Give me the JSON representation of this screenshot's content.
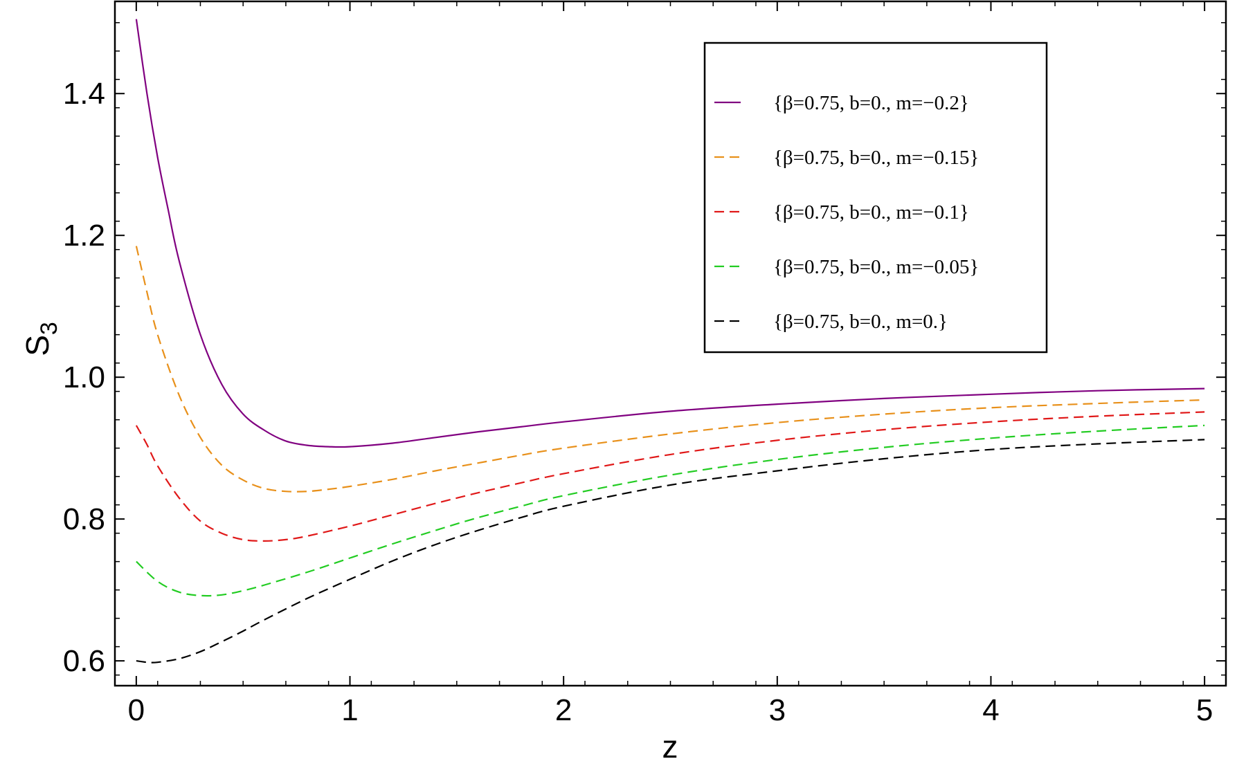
{
  "chart_data": {
    "type": "line",
    "title": "",
    "xlabel": "z",
    "ylabel": "S",
    "ylabel_sub": "3",
    "xlim": [
      -0.1,
      5.1
    ],
    "ylim": [
      0.565,
      1.53
    ],
    "xticks": [
      0,
      1,
      2,
      3,
      4,
      5
    ],
    "xtick_labels": [
      "0",
      "1",
      "2",
      "3",
      "4",
      "5"
    ],
    "yticks": [
      0.6,
      0.8,
      1.0,
      1.2,
      1.4
    ],
    "ytick_labels": [
      "0.6",
      "0.8",
      "1.0",
      "1.2",
      "1.4"
    ],
    "grid": false,
    "legend_position": "top-right",
    "series": [
      {
        "name": "{β=0.75, b=0., m=−0.2}",
        "color": "#800080",
        "dash": "solid",
        "points": [
          [
            0,
            1.505
          ],
          [
            0.05,
            1.4
          ],
          [
            0.1,
            1.31
          ],
          [
            0.15,
            1.235
          ],
          [
            0.2,
            1.165
          ],
          [
            0.3,
            1.06
          ],
          [
            0.4,
            0.99
          ],
          [
            0.5,
            0.948
          ],
          [
            0.6,
            0.925
          ],
          [
            0.7,
            0.91
          ],
          [
            0.8,
            0.904
          ],
          [
            0.9,
            0.902
          ],
          [
            1.0,
            0.902
          ],
          [
            1.2,
            0.907
          ],
          [
            1.4,
            0.915
          ],
          [
            1.6,
            0.923
          ],
          [
            1.8,
            0.93
          ],
          [
            2.0,
            0.937
          ],
          [
            2.5,
            0.952
          ],
          [
            3.0,
            0.962
          ],
          [
            3.5,
            0.97
          ],
          [
            4.0,
            0.976
          ],
          [
            4.5,
            0.981
          ],
          [
            5.0,
            0.984
          ]
        ]
      },
      {
        "name": "{β=0.75, b=0., m=−0.15}",
        "color": "#e8901a",
        "dash": "dashed",
        "points": [
          [
            0,
            1.185
          ],
          [
            0.05,
            1.12
          ],
          [
            0.1,
            1.06
          ],
          [
            0.2,
            0.975
          ],
          [
            0.3,
            0.915
          ],
          [
            0.4,
            0.876
          ],
          [
            0.5,
            0.855
          ],
          [
            0.6,
            0.843
          ],
          [
            0.7,
            0.839
          ],
          [
            0.8,
            0.839
          ],
          [
            0.9,
            0.842
          ],
          [
            1.0,
            0.846
          ],
          [
            1.2,
            0.856
          ],
          [
            1.4,
            0.868
          ],
          [
            1.6,
            0.879
          ],
          [
            1.8,
            0.89
          ],
          [
            2.0,
            0.9
          ],
          [
            2.5,
            0.92
          ],
          [
            3.0,
            0.936
          ],
          [
            3.5,
            0.948
          ],
          [
            4.0,
            0.957
          ],
          [
            4.5,
            0.963
          ],
          [
            5.0,
            0.968
          ]
        ]
      },
      {
        "name": "{β=0.75, b=0., m=−0.1}",
        "color": "#e01818",
        "dash": "dashed",
        "points": [
          [
            0,
            0.932
          ],
          [
            0.05,
            0.905
          ],
          [
            0.1,
            0.875
          ],
          [
            0.2,
            0.83
          ],
          [
            0.3,
            0.797
          ],
          [
            0.4,
            0.78
          ],
          [
            0.5,
            0.771
          ],
          [
            0.6,
            0.769
          ],
          [
            0.7,
            0.771
          ],
          [
            0.8,
            0.776
          ],
          [
            1.0,
            0.79
          ],
          [
            1.2,
            0.806
          ],
          [
            1.4,
            0.822
          ],
          [
            1.6,
            0.837
          ],
          [
            1.8,
            0.851
          ],
          [
            2.0,
            0.864
          ],
          [
            2.5,
            0.891
          ],
          [
            3.0,
            0.911
          ],
          [
            3.5,
            0.926
          ],
          [
            4.0,
            0.937
          ],
          [
            4.5,
            0.945
          ],
          [
            5.0,
            0.951
          ]
        ]
      },
      {
        "name": "{β=0.75, b=0., m=−0.05}",
        "color": "#22cc22",
        "dash": "dashed",
        "points": [
          [
            0,
            0.74
          ],
          [
            0.1,
            0.712
          ],
          [
            0.2,
            0.697
          ],
          [
            0.3,
            0.692
          ],
          [
            0.4,
            0.693
          ],
          [
            0.5,
            0.699
          ],
          [
            0.6,
            0.707
          ],
          [
            0.8,
            0.725
          ],
          [
            1.0,
            0.745
          ],
          [
            1.2,
            0.765
          ],
          [
            1.4,
            0.784
          ],
          [
            1.6,
            0.802
          ],
          [
            1.8,
            0.818
          ],
          [
            2.0,
            0.833
          ],
          [
            2.5,
            0.862
          ],
          [
            3.0,
            0.884
          ],
          [
            3.5,
            0.901
          ],
          [
            4.0,
            0.914
          ],
          [
            4.5,
            0.924
          ],
          [
            5.0,
            0.932
          ]
        ]
      },
      {
        "name": "{β=0.75, b=0., m=0.}",
        "color": "#000000",
        "dash": "dashed",
        "points": [
          [
            0,
            0.6
          ],
          [
            0.05,
            0.598
          ],
          [
            0.1,
            0.598
          ],
          [
            0.2,
            0.603
          ],
          [
            0.3,
            0.613
          ],
          [
            0.4,
            0.627
          ],
          [
            0.5,
            0.642
          ],
          [
            0.6,
            0.658
          ],
          [
            0.8,
            0.688
          ],
          [
            1.0,
            0.715
          ],
          [
            1.2,
            0.741
          ],
          [
            1.4,
            0.764
          ],
          [
            1.6,
            0.784
          ],
          [
            1.8,
            0.802
          ],
          [
            2.0,
            0.818
          ],
          [
            2.5,
            0.848
          ],
          [
            3.0,
            0.868
          ],
          [
            3.5,
            0.885
          ],
          [
            4.0,
            0.898
          ],
          [
            4.5,
            0.906
          ],
          [
            5.0,
            0.912
          ]
        ]
      }
    ]
  }
}
